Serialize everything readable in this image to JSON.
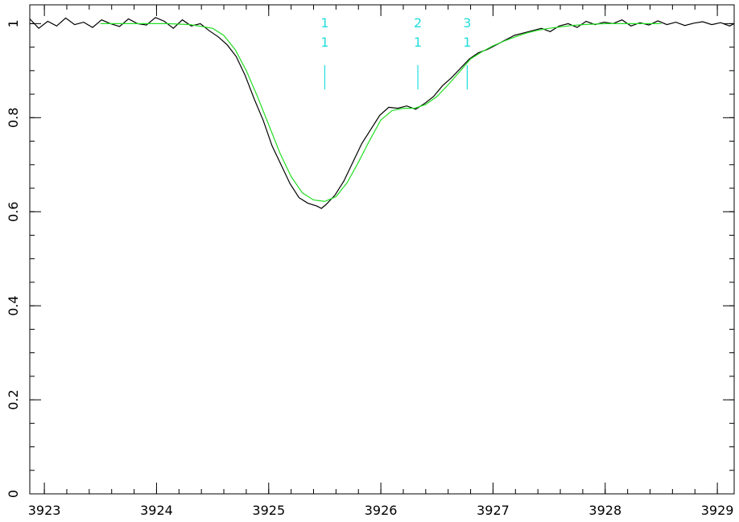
{
  "chart_data": {
    "type": "line",
    "title": "",
    "xlabel": "",
    "ylabel": "",
    "xlim": [
      3922.87,
      3929.15
    ],
    "ylim": [
      0,
      1.04
    ],
    "x_ticks": [
      {
        "value": 3923,
        "label": "3923"
      },
      {
        "value": 3924,
        "label": "3924"
      },
      {
        "value": 3925,
        "label": "3925"
      },
      {
        "value": 3926,
        "label": "3926"
      },
      {
        "value": 3927,
        "label": "3927"
      },
      {
        "value": 3928,
        "label": "3928"
      },
      {
        "value": 3929,
        "label": "3929"
      }
    ],
    "y_ticks": [
      {
        "value": 0,
        "label": "0"
      },
      {
        "value": 0.2,
        "label": "0.2"
      },
      {
        "value": 0.4,
        "label": "0.4"
      },
      {
        "value": 0.6,
        "label": "0.6"
      },
      {
        "value": 0.8,
        "label": "0.8"
      },
      {
        "value": 1,
        "label": "1"
      }
    ],
    "x_minor_step": 0.2,
    "y_minor_step": 0.05,
    "grid": false,
    "series": [
      {
        "role": "observed spectrum",
        "color": "#000000",
        "x": [
          3922.87,
          3922.95,
          3923.03,
          3923.11,
          3923.19,
          3923.27,
          3923.35,
          3923.43,
          3923.51,
          3923.59,
          3923.67,
          3923.75,
          3923.83,
          3923.91,
          3923.99,
          3924.07,
          3924.15,
          3924.23,
          3924.31,
          3924.39,
          3924.47,
          3924.55,
          3924.63,
          3924.71,
          3924.79,
          3924.87,
          3924.95,
          3925.03,
          3925.11,
          3925.19,
          3925.27,
          3925.35,
          3925.43,
          3925.47,
          3925.51,
          3925.59,
          3925.67,
          3925.75,
          3925.83,
          3925.91,
          3925.99,
          3926.07,
          3926.15,
          3926.23,
          3926.31,
          3926.39,
          3926.47,
          3926.55,
          3926.63,
          3926.71,
          3926.79,
          3926.87,
          3926.95,
          3927.03,
          3927.11,
          3927.19,
          3927.27,
          3927.35,
          3927.43,
          3927.51,
          3927.59,
          3927.67,
          3927.75,
          3927.83,
          3927.91,
          3927.99,
          3928.07,
          3928.15,
          3928.23,
          3928.31,
          3928.39,
          3928.47,
          3928.55,
          3928.63,
          3928.71,
          3928.79,
          3928.87,
          3928.95,
          3929.03,
          3929.11,
          3929.15
        ],
        "y": [
          1.01,
          0.99,
          1.005,
          0.995,
          1.012,
          0.998,
          1.003,
          0.992,
          1.008,
          1.0,
          0.994,
          1.01,
          1.0,
          0.997,
          1.013,
          1.005,
          0.99,
          1.008,
          0.995,
          1.0,
          0.985,
          0.972,
          0.955,
          0.93,
          0.89,
          0.84,
          0.795,
          0.74,
          0.7,
          0.66,
          0.63,
          0.618,
          0.612,
          0.607,
          0.615,
          0.635,
          0.665,
          0.705,
          0.745,
          0.775,
          0.805,
          0.822,
          0.82,
          0.825,
          0.818,
          0.83,
          0.845,
          0.868,
          0.885,
          0.905,
          0.925,
          0.938,
          0.945,
          0.955,
          0.965,
          0.975,
          0.98,
          0.985,
          0.99,
          0.983,
          0.995,
          1.0,
          0.992,
          1.005,
          0.998,
          1.003,
          1.0,
          1.008,
          0.995,
          1.002,
          0.997,
          1.006,
          0.998,
          1.003,
          0.996,
          1.001,
          1.004,
          0.998,
          1.002,
          0.995,
          1.0
        ]
      },
      {
        "role": "model fit",
        "color": "#22dd22",
        "x": [
          3923.5,
          3923.7,
          3923.9,
          3924.1,
          3924.3,
          3924.5,
          3924.6,
          3924.7,
          3924.8,
          3924.9,
          3925.0,
          3925.1,
          3925.2,
          3925.3,
          3925.4,
          3925.5,
          3925.6,
          3925.7,
          3925.8,
          3925.9,
          3926.0,
          3926.1,
          3926.2,
          3926.3,
          3926.4,
          3926.5,
          3926.6,
          3926.7,
          3926.8,
          3926.9,
          3927.0,
          3927.1,
          3927.2,
          3927.3,
          3927.4,
          3927.5,
          3927.6,
          3927.7,
          3927.8,
          3927.9,
          3928.0,
          3928.2,
          3928.5
        ],
        "y": [
          1.0,
          1.0,
          1.0,
          1.0,
          0.998,
          0.99,
          0.975,
          0.945,
          0.9,
          0.845,
          0.785,
          0.725,
          0.675,
          0.64,
          0.625,
          0.622,
          0.632,
          0.662,
          0.705,
          0.752,
          0.795,
          0.815,
          0.82,
          0.82,
          0.828,
          0.845,
          0.87,
          0.897,
          0.925,
          0.94,
          0.953,
          0.963,
          0.972,
          0.98,
          0.986,
          0.99,
          0.993,
          0.996,
          0.998,
          0.999,
          1.0,
          1.0,
          1.0
        ]
      }
    ],
    "annotations": [
      {
        "x": 3925.5,
        "label_top": "1",
        "label_bottom": "1",
        "y_top": 0.97,
        "y_bottom": 0.86
      },
      {
        "x": 3926.33,
        "label_top": "2",
        "label_bottom": "1",
        "y_top": 0.97,
        "y_bottom": 0.86
      },
      {
        "x": 3926.77,
        "label_top": "3",
        "label_bottom": "1",
        "y_top": 0.97,
        "y_bottom": 0.86
      }
    ],
    "colors": {
      "axes": "#000000",
      "annotation": "#22dddd"
    }
  }
}
